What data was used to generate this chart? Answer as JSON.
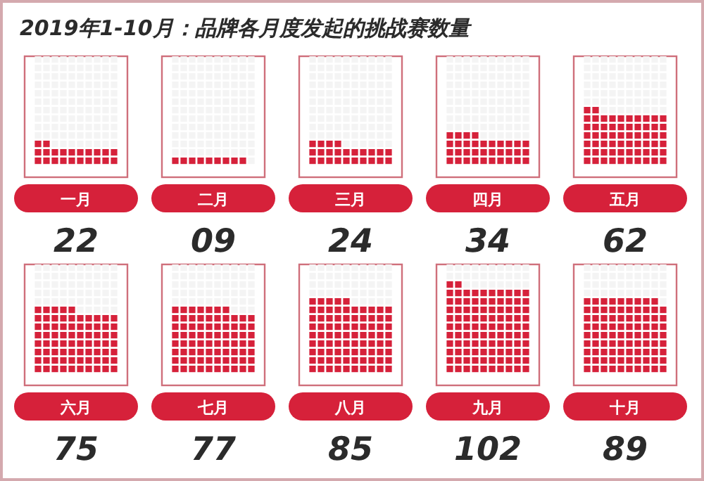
{
  "chart_data": {
    "type": "other",
    "title": "2019年1-10月：品牌各月度发起的挑战赛数量",
    "categories": [
      "一月",
      "二月",
      "三月",
      "四月",
      "五月",
      "六月",
      "七月",
      "八月",
      "九月",
      "十月"
    ],
    "values": [
      22,
      9,
      24,
      34,
      62,
      75,
      77,
      85,
      102,
      89
    ],
    "value_labels": [
      "22",
      "09",
      "24",
      "34",
      "62",
      "75",
      "77",
      "85",
      "102",
      "89"
    ],
    "color": "#d6213a"
  }
}
